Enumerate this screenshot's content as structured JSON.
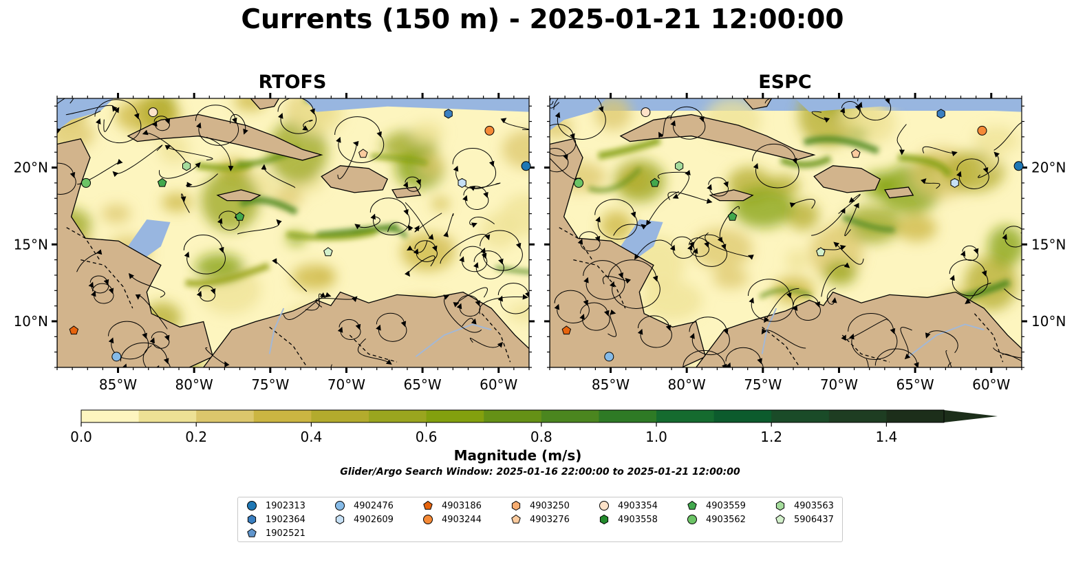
{
  "title": "Currents (150 m) - 2025-01-21 12:00:00",
  "panels": [
    {
      "id": "rtofs",
      "title": "RTOFS"
    },
    {
      "id": "espc",
      "title": "ESPC"
    }
  ],
  "colors": {
    "ocean": "#98b6e0",
    "land": "#d2b48c",
    "border": "#000000",
    "river": "#a3b8d6"
  },
  "chart_data": {
    "type": "heatmap",
    "map_extent": {
      "lon": [
        -89,
        -58
      ],
      "lat": [
        7,
        24.5
      ]
    },
    "x_ticks": [
      "85°W",
      "80°W",
      "75°W",
      "70°W",
      "65°W",
      "60°W"
    ],
    "y_ticks": [
      "20°N",
      "15°N",
      "10°N"
    ],
    "colorbar": {
      "label": "Magnitude (m/s)",
      "range": [
        0.0,
        1.5
      ],
      "extend": "max",
      "tick_labels": [
        "0.0",
        "0.2",
        "0.4",
        "0.6",
        "0.8",
        "1.0",
        "1.2",
        "1.4"
      ],
      "colors": [
        "#fdf5bf",
        "#ede195",
        "#dcc76c",
        "#cbb542",
        "#b3ab2d",
        "#9aa51f",
        "#83a00e",
        "#659116",
        "#4b861f",
        "#2e7a25",
        "#156b2f",
        "#0c5b2d",
        "#1a4b28",
        "#1e3d22",
        "#1c2e1a"
      ]
    },
    "search_window": "Glider/Argo Search Window: 2025-01-16 22:00:00 to 2025-01-21 12:00:00",
    "floats": [
      {
        "id": "1902313",
        "marker": "circle",
        "color": "#1f77b4",
        "lon": -58.2,
        "lat": 20.1
      },
      {
        "id": "1902364",
        "marker": "hexagon",
        "color": "#3a7fc1",
        "lon": -63.3,
        "lat": 23.5
      },
      {
        "id": "1902521",
        "marker": "pentagon",
        "color": "#6095cc",
        "lon": null,
        "lat": null
      },
      {
        "id": "4902476",
        "marker": "circle",
        "color": "#86bbe8",
        "lon": -85.1,
        "lat": 7.7
      },
      {
        "id": "4902609",
        "marker": "hexagon",
        "color": "#c6e0f5",
        "lon": -62.4,
        "lat": 19.0
      },
      {
        "id": "4903186",
        "marker": "pentagon",
        "color": "#e6640e",
        "lon": -87.9,
        "lat": 9.4
      },
      {
        "id": "4903244",
        "marker": "circle",
        "color": "#f58a37",
        "lon": -60.6,
        "lat": 22.4
      },
      {
        "id": "4903250",
        "marker": "hexagon",
        "color": "#f7ad71",
        "lon": null,
        "lat": null
      },
      {
        "id": "4903276",
        "marker": "pentagon",
        "color": "#fbcb9e",
        "lon": -68.9,
        "lat": 20.9
      },
      {
        "id": "4903354",
        "marker": "circle",
        "color": "#fde2c8",
        "lon": -82.7,
        "lat": 23.6
      },
      {
        "id": "4903558",
        "marker": "hexagon",
        "color": "#238b2d",
        "lon": null,
        "lat": null
      },
      {
        "id": "4903559",
        "marker": "pentagon",
        "color": "#42a84d",
        "lon": -82.1,
        "lat": 19.0
      },
      {
        "id": "4903562",
        "marker": "circle",
        "color": "#6cc466",
        "lon": -87.1,
        "lat": 19.0
      },
      {
        "id": "4903563",
        "marker": "hexagon",
        "color": "#a5dc9c",
        "lon": -80.5,
        "lat": 20.1
      },
      {
        "id": "5906437",
        "marker": "pentagon",
        "color": "#d3f0cb",
        "lon": -71.2,
        "lat": 14.5
      }
    ],
    "extra_map_markers": [
      {
        "color": "#42a84d",
        "marker": "pentagon",
        "lon": -77.0,
        "lat": 16.8
      }
    ]
  }
}
